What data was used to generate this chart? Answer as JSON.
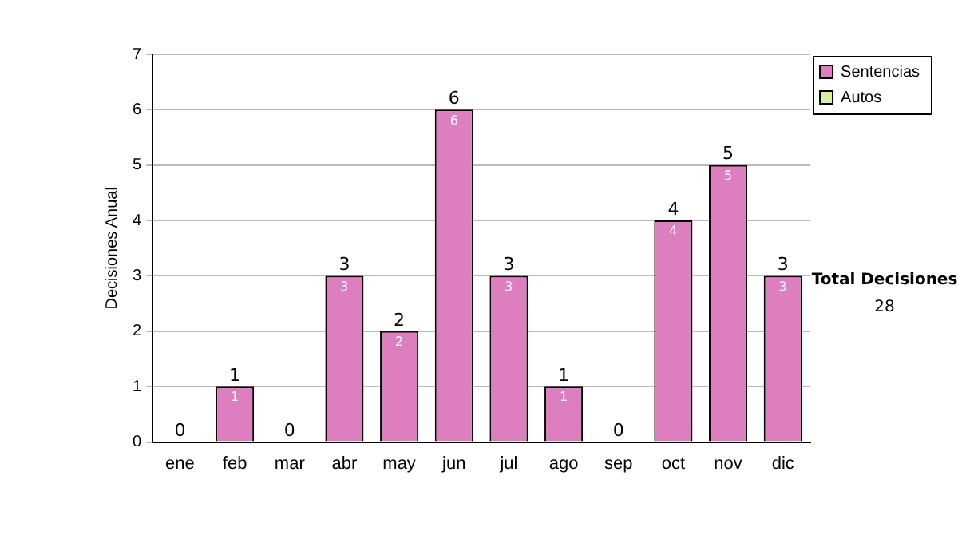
{
  "chart_data": {
    "type": "bar",
    "stacked": true,
    "ylabel": "Decisiones Anual",
    "categories": [
      "ene",
      "feb",
      "mar",
      "abr",
      "may",
      "jun",
      "jul",
      "ago",
      "sep",
      "oct",
      "nov",
      "dic"
    ],
    "series": [
      {
        "name": "Sentencias",
        "color": "#dd7fbf",
        "values": [
          0,
          1,
          0,
          3,
          2,
          6,
          3,
          1,
          0,
          4,
          5,
          3
        ],
        "value_labels": [
          null,
          "1",
          null,
          "3",
          "2",
          "6",
          "3",
          "1",
          null,
          "4",
          "5",
          "3"
        ]
      },
      {
        "name": "Autos",
        "color": "#d9f0a3",
        "values": [
          0,
          0,
          0,
          0,
          0,
          0,
          0,
          0,
          0,
          0,
          0,
          0
        ]
      }
    ],
    "totals": [
      "0",
      "1",
      "0",
      "3",
      "2",
      "6",
      "3",
      "1",
      "0",
      "4",
      "5",
      "3"
    ],
    "ylim": [
      0,
      7
    ],
    "yticks": [
      0,
      1,
      2,
      3,
      4,
      5,
      6,
      7
    ],
    "grid": "y",
    "legend": "right",
    "annotations": [
      "Total Decisiones",
      "28"
    ]
  }
}
